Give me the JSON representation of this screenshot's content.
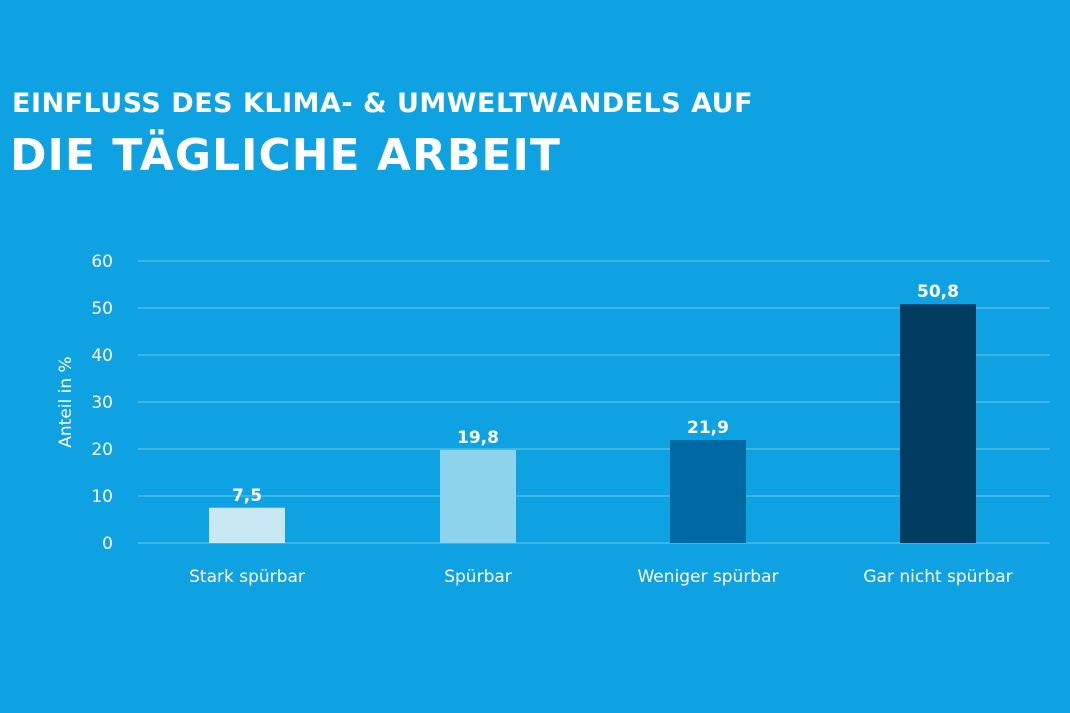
{
  "chart_data": {
    "type": "bar",
    "title": "EINFLUSS DES KLIMA- & UMWELTWANDELS AUF",
    "subtitle": "DIE TÄGLICHE ARBEIT",
    "categories": [
      "Stark spürbar",
      "Spürbar",
      "Weniger spürbar",
      "Gar nicht spürbar"
    ],
    "values": [
      7.5,
      19.8,
      21.9,
      50.8
    ],
    "value_labels": [
      "7,5",
      "19,8",
      "21,9",
      "50,8"
    ],
    "colors": [
      "#c8e8f3",
      "#8cd3eb",
      "#0069a2",
      "#003d60"
    ],
    "xlabel": "",
    "ylabel": "Anteil in %",
    "ylim": [
      0,
      60
    ],
    "yticks": [
      0,
      10,
      20,
      30,
      40,
      50,
      60
    ],
    "grid": true,
    "legend": "none"
  }
}
